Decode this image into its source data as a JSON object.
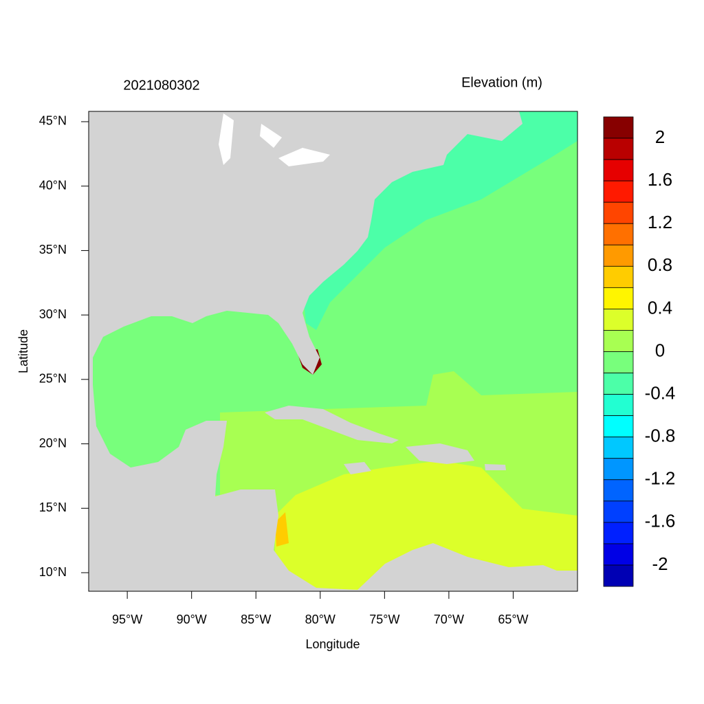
{
  "title": "2021080302",
  "legend_title": "Elevation (m)",
  "map": {
    "xlabel": "Longitude",
    "ylabel": "Latitude",
    "xlim": [
      -98,
      -60
    ],
    "ylim": [
      8.56,
      45.8
    ],
    "xticks": [
      {
        "value": -95,
        "label": "95°W"
      },
      {
        "value": -90,
        "label": "90°W"
      },
      {
        "value": -85,
        "label": "85°W"
      },
      {
        "value": -80,
        "label": "80°W"
      },
      {
        "value": -75,
        "label": "75°W"
      },
      {
        "value": -70,
        "label": "70°W"
      },
      {
        "value": -65,
        "label": "65°W"
      }
    ],
    "yticks": [
      {
        "value": 10,
        "label": "10°N"
      },
      {
        "value": 15,
        "label": "15°N"
      },
      {
        "value": 20,
        "label": "20°N"
      },
      {
        "value": 25,
        "label": "25°N"
      },
      {
        "value": 30,
        "label": "30°N"
      },
      {
        "value": 35,
        "label": "35°N"
      },
      {
        "value": 40,
        "label": "40°N"
      },
      {
        "value": 45,
        "label": "45°N"
      }
    ]
  },
  "colorbar": {
    "lim": [
      -2.2,
      2.2
    ],
    "ticks": [
      2,
      1.6,
      1.2,
      0.8,
      0.4,
      0,
      -0.4,
      -0.8,
      -1.2,
      -1.6,
      -2
    ],
    "colors": [
      "#870000",
      "#b90000",
      "#e60000",
      "#ff1a00",
      "#ff4500",
      "#ff7000",
      "#ff9a00",
      "#ffcc00",
      "#fff500",
      "#dcff2a",
      "#a8ff52",
      "#78ff7c",
      "#4cffa8",
      "#22ffd2",
      "#00ffff",
      "#00c8ff",
      "#0096ff",
      "#0064ff",
      "#0040ff",
      "#0020ff",
      "#0000e6",
      "#0000b4"
    ]
  }
}
